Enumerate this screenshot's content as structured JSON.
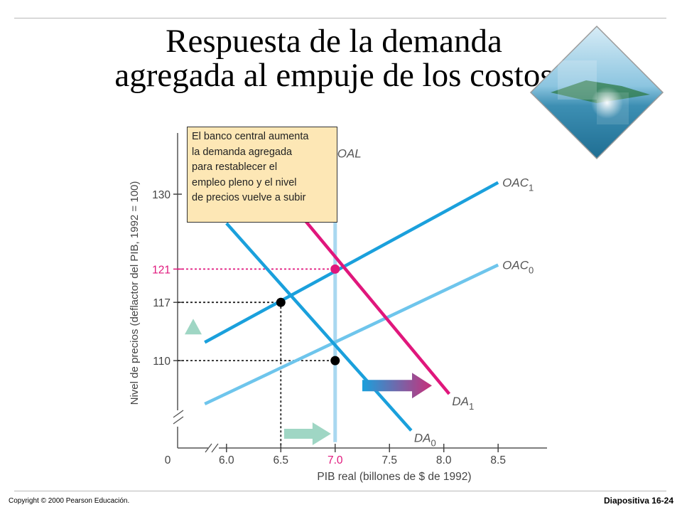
{
  "slide": {
    "title_line1": "Respuesta de la demanda",
    "title_line2": "agregada al empuje de los costos",
    "copyright": "Copyright © 2000 Pearson Educación.",
    "slide_number": "Diapositiva 16-24"
  },
  "annotation": {
    "lines": [
      "El banco central aumenta",
      "la demanda agregada",
      "para restablecer el",
      "empleo pleno y el nivel",
      "de precios vuelve a subir"
    ]
  },
  "colors": {
    "oal": "#a9d8f0",
    "oac0": "#6ec5ec",
    "oac1": "#1aa0dc",
    "da0": "#1aa0dc",
    "da1": "#e0177c",
    "highlight_121": "#e0177c",
    "arrow_green": "#9fd6c4",
    "arrow_gradient_start": "#1aa0dc",
    "arrow_gradient_end": "#c8307a",
    "annotation_bg": "#fde7b5"
  },
  "chart_data": {
    "type": "line",
    "xlabel": "PIB real (billones de $ de 1992)",
    "ylabel": "Nivel de precios (deflactor del PIB, 1992 = 100)",
    "x_ticks": [
      "0",
      "6.0",
      "6.5",
      "7.0",
      "7.5",
      "8.0",
      "8.5"
    ],
    "x_tick_values": [
      6.0,
      6.5,
      7.0,
      7.5,
      8.0,
      8.5
    ],
    "y_ticks": [
      {
        "label": "110",
        "value": 110
      },
      {
        "label": "117",
        "value": 117
      },
      {
        "label": "121",
        "value": 121,
        "highlight": true
      },
      {
        "label": "130",
        "value": 130
      }
    ],
    "xlim": [
      5.55,
      8.95
    ],
    "ylim": [
      99.5,
      136.5
    ],
    "axis_breaks": true,
    "series": [
      {
        "name": "OAL",
        "sub": "",
        "kind": "vertical",
        "x": 7.0,
        "y_range": [
          100.2,
          135.6
        ]
      },
      {
        "name": "OAC",
        "sub": "1",
        "points": [
          [
            5.8,
            112.2
          ],
          [
            8.5,
            131.4
          ]
        ]
      },
      {
        "name": "OAC",
        "sub": "0",
        "points": [
          [
            5.8,
            104.8
          ],
          [
            8.5,
            121.5
          ]
        ]
      },
      {
        "name": "DA",
        "sub": "0",
        "points": [
          [
            6.0,
            126.5
          ],
          [
            7.7,
            101.6
          ]
        ]
      },
      {
        "name": "DA",
        "sub": "1",
        "points": [
          [
            6.7,
            127.2
          ],
          [
            8.05,
            106.0
          ]
        ]
      }
    ],
    "equilibria": [
      {
        "x": 7.0,
        "y": 110,
        "color": "#000000"
      },
      {
        "x": 6.5,
        "y": 117,
        "color": "#000000"
      },
      {
        "x": 7.0,
        "y": 121,
        "color": "#e0177c"
      }
    ],
    "annotations": [
      "Arrow up along price axis from 110 to 117",
      "Arrow right along GDP axis from 6.5 to 7.0",
      "Arrow from DA0 to DA1 (demand shift)"
    ]
  }
}
